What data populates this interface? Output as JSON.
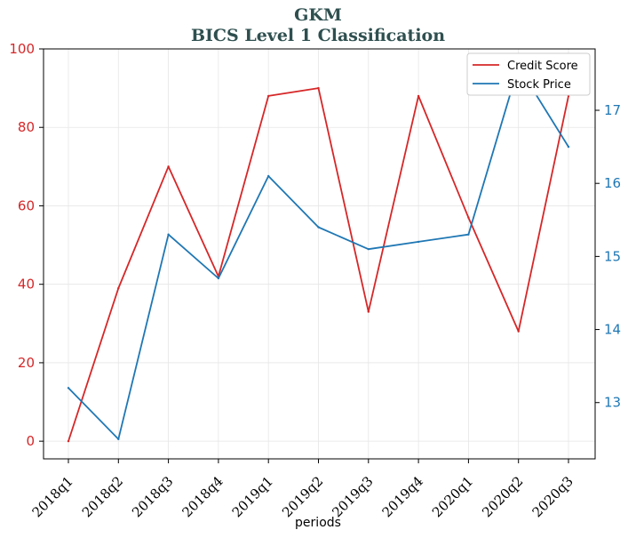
{
  "chart_data": {
    "type": "line",
    "title": "GKM",
    "subtitle": "BICS Level 1 Classification",
    "xlabel": "periods",
    "categories": [
      "2018q1",
      "2018q2",
      "2018q3",
      "2018q4",
      "2019q1",
      "2019q2",
      "2019q3",
      "2019q4",
      "2020q1",
      "2020q2",
      "2020q3"
    ],
    "left_axis": {
      "ylim": [
        -4.5,
        100
      ],
      "ticks": [
        "0",
        "20",
        "40",
        "60",
        "80",
        "100"
      ],
      "color": "#d62728"
    },
    "right_axis": {
      "ylim": [
        12.23,
        17.84
      ],
      "ticks": [
        "13",
        "14",
        "15",
        "16",
        "17"
      ],
      "color": "#1f77b4"
    },
    "series": [
      {
        "name": "Credit Score",
        "axis": "left",
        "color": "#d62728",
        "values": [
          0,
          39,
          70,
          42,
          88,
          90,
          33,
          88,
          57,
          28,
          88
        ]
      },
      {
        "name": "Stock Price",
        "axis": "right",
        "color": "#1f77b4",
        "values": [
          13.2,
          12.5,
          15.3,
          14.7,
          16.1,
          15.4,
          15.1,
          15.2,
          15.3,
          17.6,
          16.5
        ]
      }
    ],
    "legend": "top-right",
    "grid": true
  }
}
